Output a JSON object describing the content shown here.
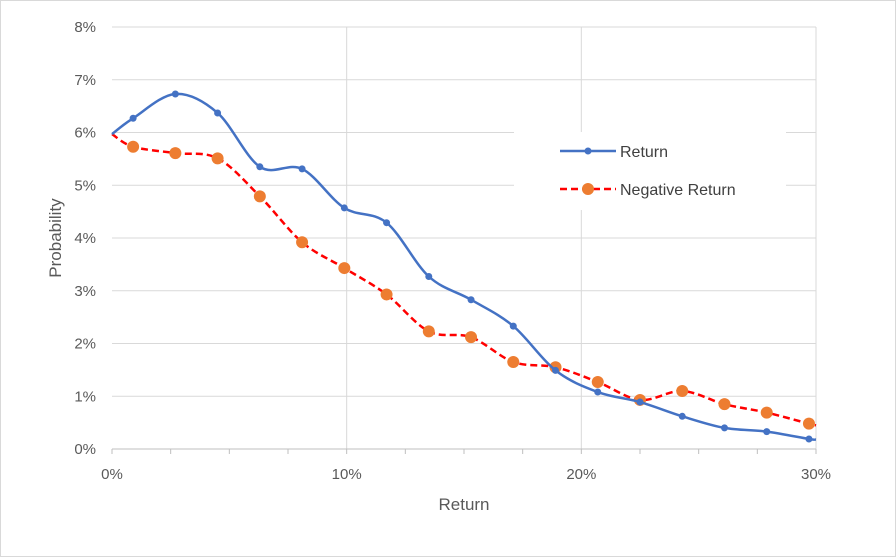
{
  "chart_data": {
    "type": "line",
    "title": "",
    "xlabel": "Return",
    "ylabel": "Probability",
    "xlim": [
      0,
      30
    ],
    "ylim": [
      0,
      8
    ],
    "x_ticks": [
      "0%",
      "10%",
      "20%",
      "30%"
    ],
    "y_ticks": [
      "0%",
      "1%",
      "2%",
      "3%",
      "4%",
      "5%",
      "6%",
      "7%",
      "8%"
    ],
    "grid": true,
    "legend_position": "right",
    "x": [
      0,
      0.9,
      2.7,
      4.5,
      6.3,
      8.1,
      9.9,
      11.7,
      13.5,
      15.3,
      17.1,
      18.9,
      20.7,
      22.5,
      24.3,
      26.1,
      27.9,
      29.7,
      30
    ],
    "series": [
      {
        "name": "Return",
        "color": "#4472c4",
        "style": "solid",
        "values": [
          5.97,
          6.27,
          6.73,
          6.37,
          5.35,
          5.31,
          4.57,
          4.29,
          3.27,
          2.83,
          2.33,
          1.49,
          1.08,
          0.89,
          0.62,
          0.4,
          0.33,
          0.19,
          0.18
        ]
      },
      {
        "name": "Negative Return",
        "color": "#ff0000",
        "marker_color": "#ed7d31",
        "style": "dashed",
        "values": [
          5.97,
          5.73,
          5.61,
          5.51,
          4.79,
          3.92,
          3.43,
          2.93,
          2.23,
          2.12,
          1.65,
          1.55,
          1.27,
          0.93,
          1.1,
          0.85,
          0.69,
          0.48,
          0.45
        ]
      }
    ]
  }
}
